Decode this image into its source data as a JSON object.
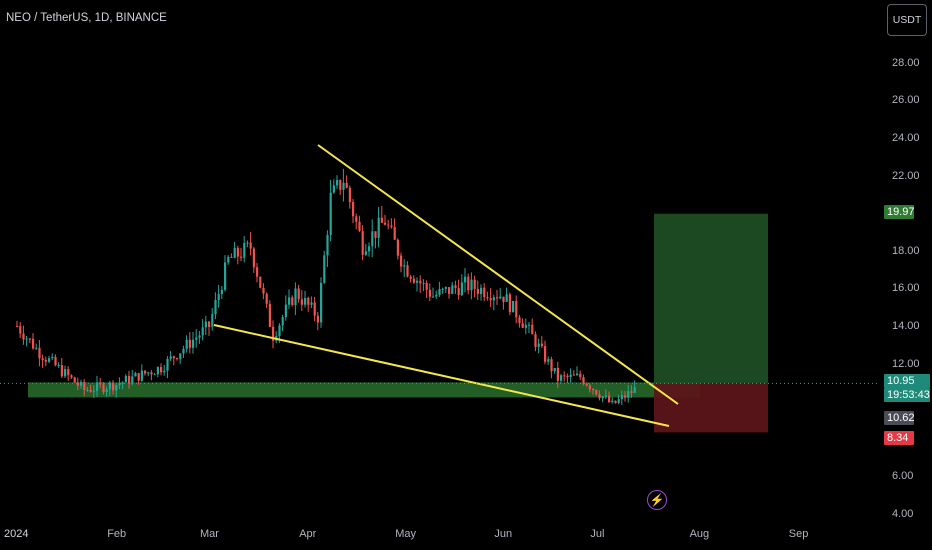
{
  "header": {
    "symbol_title": "NEO / TetherUS, 1D, BINANCE"
  },
  "toolbar": {
    "currency_label": "USDT"
  },
  "price_axis": {
    "ticks": [
      "28.00",
      "26.00",
      "24.00",
      "22.00",
      "18.00",
      "16.00",
      "14.00",
      "12.00",
      "6.00",
      "4.00"
    ]
  },
  "time_axis": {
    "labels": [
      "2024",
      "Feb",
      "Mar",
      "Apr",
      "May",
      "Jun",
      "Jul",
      "Aug",
      "Sep"
    ]
  },
  "badges": {
    "target": "19.97",
    "last_price": "10.95",
    "countdown": "19:53:43",
    "current": "10.62",
    "stop": "8.34"
  },
  "colors": {
    "bull": "#26a69a",
    "bear": "#ef5350",
    "trendline": "#f5e74b",
    "zone": "#2e7d32",
    "target_box": "#1e4d24",
    "stop_box": "#5c1519"
  },
  "icons": {
    "event": "lightning-icon"
  },
  "chart_data": {
    "type": "candlestick",
    "symbol": "NEO / TetherUS",
    "interval": "1D",
    "exchange": "BINANCE",
    "y_range": [
      4,
      29
    ],
    "x_labels": [
      "2024",
      "Feb",
      "Mar",
      "Apr",
      "May",
      "Jun",
      "Jul",
      "Aug",
      "Sep"
    ],
    "close_path": [
      {
        "date": "2024-01-01",
        "price": 14.0
      },
      {
        "date": "2024-01-08",
        "price": 12.6
      },
      {
        "date": "2024-01-15",
        "price": 11.6
      },
      {
        "date": "2024-01-22",
        "price": 10.6
      },
      {
        "date": "2024-02-01",
        "price": 10.9
      },
      {
        "date": "2024-02-15",
        "price": 11.8
      },
      {
        "date": "2024-03-01",
        "price": 14.0
      },
      {
        "date": "2024-03-07",
        "price": 17.5
      },
      {
        "date": "2024-03-14",
        "price": 18.2
      },
      {
        "date": "2024-03-21",
        "price": 13.5
      },
      {
        "date": "2024-03-28",
        "price": 15.8
      },
      {
        "date": "2024-04-04",
        "price": 14.5
      },
      {
        "date": "2024-04-08",
        "price": 20.8
      },
      {
        "date": "2024-04-12",
        "price": 21.8
      },
      {
        "date": "2024-04-18",
        "price": 18.3
      },
      {
        "date": "2024-04-25",
        "price": 19.6
      },
      {
        "date": "2024-05-01",
        "price": 17.2
      },
      {
        "date": "2024-05-10",
        "price": 15.6
      },
      {
        "date": "2024-05-20",
        "price": 16.2
      },
      {
        "date": "2024-06-01",
        "price": 15.6
      },
      {
        "date": "2024-06-08",
        "price": 14.0
      },
      {
        "date": "2024-06-18",
        "price": 11.2
      },
      {
        "date": "2024-06-25",
        "price": 11.3
      },
      {
        "date": "2024-07-05",
        "price": 9.8
      },
      {
        "date": "2024-07-12",
        "price": 10.62
      }
    ],
    "drawings": {
      "resistance_line": {
        "from": {
          "date": "2024-04-01",
          "price": 23.5
        },
        "to": {
          "date": "2024-07-18",
          "price": 10.5
        }
      },
      "support_line": {
        "from": {
          "date": "2024-03-01",
          "price": 13.8
        },
        "to": {
          "date": "2024-07-18",
          "price": 8.9
        }
      },
      "demand_zone": {
        "price_top": 11.0,
        "price_bottom": 10.2
      },
      "position": {
        "entry": 10.95,
        "target": 19.97,
        "stop": 8.34
      }
    }
  }
}
